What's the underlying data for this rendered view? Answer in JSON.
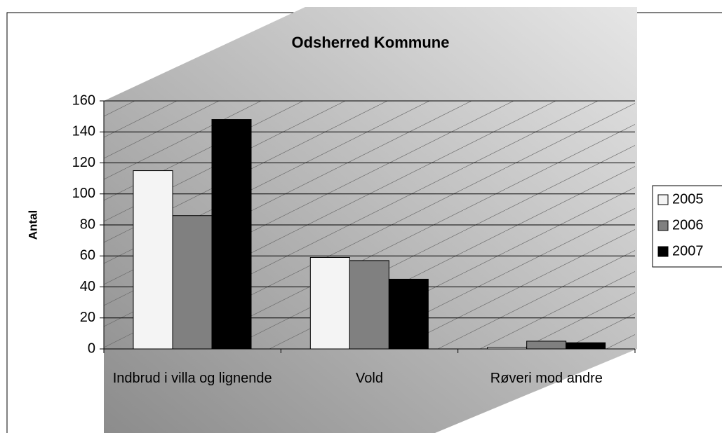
{
  "chart_data": {
    "type": "bar",
    "title": "Odsherred Kommune",
    "y_label": "Antal",
    "categories": [
      "Indbrud i villa og lignende",
      "Vold",
      "Røveri mod andre"
    ],
    "series": [
      {
        "name": "2005",
        "color": "#f4f4f4",
        "values": [
          115,
          59,
          1
        ]
      },
      {
        "name": "2006",
        "color": "#808080",
        "values": [
          86,
          57,
          5
        ]
      },
      {
        "name": "2007",
        "color": "#000000",
        "values": [
          148,
          45,
          4
        ]
      }
    ],
    "ylim": [
      0,
      160
    ],
    "yticks": [
      0,
      20,
      40,
      60,
      80,
      100,
      120,
      140,
      160
    ],
    "grid": true,
    "legend": "right"
  }
}
